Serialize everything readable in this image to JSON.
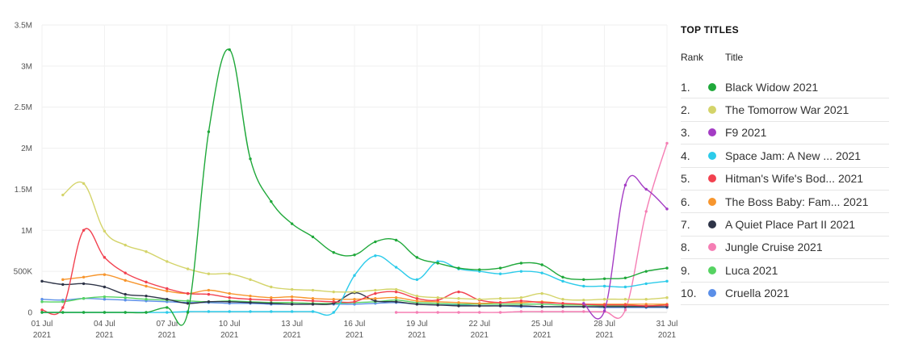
{
  "chart_data": {
    "type": "line",
    "y_ticks": [
      "0",
      "500K",
      "1M",
      "1.5M",
      "2M",
      "2.5M",
      "3M",
      "3.5M"
    ],
    "y_tick_values": [
      0,
      500000,
      1000000,
      1500000,
      2000000,
      2500000,
      3000000,
      3500000
    ],
    "ylim": [
      0,
      3500000
    ],
    "x_ticks": [
      {
        "day": 1,
        "line1": "01 Jul",
        "line2": "2021"
      },
      {
        "day": 4,
        "line1": "04 Jul",
        "line2": "2021"
      },
      {
        "day": 7,
        "line1": "07 Jul",
        "line2": "2021"
      },
      {
        "day": 10,
        "line1": "10 Jul",
        "line2": "2021"
      },
      {
        "day": 13,
        "line1": "13 Jul",
        "line2": "2021"
      },
      {
        "day": 16,
        "line1": "16 Jul",
        "line2": "2021"
      },
      {
        "day": 19,
        "line1": "19 Jul",
        "line2": "2021"
      },
      {
        "day": 22,
        "line1": "22 Jul",
        "line2": "2021"
      },
      {
        "day": 25,
        "line1": "25 Jul",
        "line2": "2021"
      },
      {
        "day": 28,
        "line1": "28 Jul",
        "line2": "2021"
      },
      {
        "day": 31,
        "line1": "31 Jul",
        "line2": "2021"
      }
    ],
    "xlim": [
      1,
      31
    ],
    "grid": true,
    "series": [
      {
        "name": "Black Widow 2021",
        "color": "#1fa83a",
        "days": [
          1,
          2,
          3,
          4,
          5,
          6,
          7,
          8,
          9,
          10,
          11,
          12,
          13,
          14,
          15,
          16,
          17,
          18,
          19,
          20,
          21,
          22,
          23,
          24,
          25,
          26,
          27,
          28,
          29,
          30,
          31
        ],
        "values": [
          0,
          0,
          0,
          0,
          0,
          0,
          60000,
          0,
          2200000,
          3200000,
          1870000,
          1350000,
          1080000,
          920000,
          730000,
          700000,
          860000,
          880000,
          670000,
          600000,
          540000,
          520000,
          540000,
          600000,
          580000,
          430000,
          400000,
          410000,
          420000,
          500000,
          540000
        ]
      },
      {
        "name": "The Tomorrow War 2021",
        "color": "#d4d46a",
        "days": [
          2,
          3,
          4,
          5,
          6,
          7,
          8,
          9,
          10,
          11,
          12,
          13,
          14,
          15,
          16,
          17,
          18,
          19,
          20,
          21,
          22,
          23,
          24,
          25,
          26,
          27,
          28,
          29,
          30,
          31
        ],
        "values": [
          1430000,
          1570000,
          990000,
          820000,
          740000,
          620000,
          530000,
          470000,
          470000,
          400000,
          310000,
          280000,
          270000,
          250000,
          250000,
          270000,
          280000,
          200000,
          180000,
          170000,
          160000,
          170000,
          180000,
          230000,
          160000,
          150000,
          160000,
          160000,
          160000,
          180000
        ]
      },
      {
        "name": "F9 2021",
        "color": "#a43cc4",
        "days": [
          27,
          28,
          29,
          30,
          31
        ],
        "values": [
          110000,
          20000,
          1550000,
          1500000,
          1260000
        ]
      },
      {
        "name": "Space Jam: A New ... 2021",
        "color": "#2ccbea",
        "days": [
          1,
          2,
          3,
          4,
          5,
          6,
          7,
          8,
          9,
          10,
          11,
          12,
          13,
          14,
          15,
          16,
          17,
          18,
          19,
          20,
          21,
          22,
          23,
          24,
          25,
          26,
          27,
          28,
          29,
          30,
          31
        ],
        "values": [
          0,
          0,
          0,
          0,
          0,
          0,
          0,
          10000,
          10000,
          10000,
          10000,
          10000,
          10000,
          10000,
          0,
          450000,
          690000,
          550000,
          400000,
          620000,
          530000,
          500000,
          470000,
          500000,
          480000,
          380000,
          320000,
          320000,
          310000,
          350000,
          380000
        ]
      },
      {
        "name": "Hitman's Wife's Bod... 2021",
        "color": "#f2414f",
        "days": [
          1,
          2,
          3,
          4,
          5,
          6,
          7,
          8,
          9,
          10,
          11,
          12,
          13,
          14,
          15,
          16,
          17,
          18,
          19,
          20,
          21,
          22,
          23,
          24,
          25,
          26,
          27,
          28,
          29,
          30,
          31
        ],
        "values": [
          30000,
          60000,
          1000000,
          670000,
          480000,
          370000,
          290000,
          230000,
          220000,
          180000,
          160000,
          150000,
          150000,
          140000,
          130000,
          130000,
          230000,
          250000,
          170000,
          150000,
          250000,
          150000,
          120000,
          140000,
          120000,
          110000,
          100000,
          90000,
          90000,
          80000,
          90000
        ]
      },
      {
        "name": "The Boss Baby: Fam... 2021",
        "color": "#f7962e",
        "days": [
          2,
          3,
          4,
          5,
          6,
          7,
          8,
          9,
          10,
          11,
          12,
          13,
          14,
          15,
          16,
          17,
          18,
          19,
          20,
          21,
          22,
          23,
          24,
          25,
          26,
          27,
          28,
          29,
          30,
          31
        ],
        "values": [
          400000,
          430000,
          460000,
          390000,
          320000,
          260000,
          230000,
          270000,
          230000,
          200000,
          180000,
          190000,
          170000,
          160000,
          160000,
          170000,
          180000,
          140000,
          130000,
          120000,
          110000,
          120000,
          120000,
          130000,
          110000,
          100000,
          100000,
          100000,
          100000,
          100000
        ]
      },
      {
        "name": "A Quiet Place Part II 2021",
        "color": "#2e3447",
        "days": [
          1,
          2,
          3,
          4,
          5,
          6,
          7,
          8,
          9,
          10,
          11,
          12,
          13,
          14,
          15,
          16,
          17,
          18,
          19,
          20,
          21,
          22,
          23,
          24,
          25,
          26,
          27,
          28,
          29,
          30,
          31
        ],
        "values": [
          380000,
          340000,
          350000,
          310000,
          220000,
          200000,
          160000,
          110000,
          130000,
          130000,
          120000,
          110000,
          100000,
          100000,
          110000,
          240000,
          140000,
          130000,
          100000,
          90000,
          80000,
          80000,
          80000,
          80000,
          70000,
          70000,
          70000,
          70000,
          70000,
          70000,
          70000
        ]
      },
      {
        "name": "Jungle Cruise 2021",
        "color": "#f57eb4",
        "days": [
          18,
          19,
          20,
          21,
          22,
          23,
          24,
          25,
          26,
          27,
          28,
          29,
          30,
          31
        ],
        "values": [
          0,
          0,
          0,
          0,
          0,
          0,
          10000,
          10000,
          10000,
          10000,
          10000,
          30000,
          1230000,
          2060000
        ]
      },
      {
        "name": "Luca 2021",
        "color": "#56d362",
        "days": [
          1,
          2,
          3,
          4,
          5,
          6,
          7,
          8,
          9,
          10,
          11,
          12,
          13,
          14,
          15,
          16,
          17,
          18,
          19,
          20,
          21,
          22,
          23,
          24,
          25,
          26,
          27,
          28,
          29,
          30,
          31
        ],
        "values": [
          130000,
          130000,
          170000,
          190000,
          180000,
          160000,
          150000,
          140000,
          130000,
          140000,
          130000,
          120000,
          120000,
          110000,
          110000,
          120000,
          130000,
          150000,
          120000,
          110000,
          100000,
          100000,
          100000,
          100000,
          100000,
          90000,
          90000,
          80000,
          80000,
          80000,
          90000
        ]
      },
      {
        "name": "Cruella 2021",
        "color": "#5b8fe8",
        "days": [
          1,
          2,
          3,
          4,
          5,
          6,
          7,
          8,
          9,
          10,
          11,
          12,
          13,
          14,
          15,
          16,
          17,
          18,
          19,
          20,
          21,
          22,
          23,
          24,
          25,
          26,
          27,
          28,
          29,
          30,
          31
        ],
        "values": [
          160000,
          150000,
          170000,
          160000,
          150000,
          140000,
          130000,
          120000,
          120000,
          110000,
          110000,
          100000,
          100000,
          100000,
          100000,
          100000,
          110000,
          120000,
          100000,
          90000,
          90000,
          80000,
          80000,
          70000,
          70000,
          70000,
          70000,
          60000,
          60000,
          60000,
          60000
        ]
      }
    ]
  },
  "legend": {
    "title": "TOP TITLES",
    "rank_header": "Rank",
    "title_header": "Title",
    "items": [
      {
        "rank": "1.",
        "label": "Black Widow 2021",
        "color": "#1fa83a"
      },
      {
        "rank": "2.",
        "label": "The Tomorrow War 2021",
        "color": "#d4d46a"
      },
      {
        "rank": "3.",
        "label": "F9 2021",
        "color": "#a43cc4"
      },
      {
        "rank": "4.",
        "label": "Space Jam: A New ... 2021",
        "color": "#2ccbea"
      },
      {
        "rank": "5.",
        "label": "Hitman's Wife's Bod... 2021",
        "color": "#f2414f"
      },
      {
        "rank": "6.",
        "label": "The Boss Baby: Fam... 2021",
        "color": "#f7962e"
      },
      {
        "rank": "7.",
        "label": "A Quiet Place Part II 2021",
        "color": "#2e3447"
      },
      {
        "rank": "8.",
        "label": "Jungle Cruise 2021",
        "color": "#f57eb4"
      },
      {
        "rank": "9.",
        "label": "Luca 2021",
        "color": "#56d362"
      },
      {
        "rank": "10.",
        "label": "Cruella 2021",
        "color": "#5b8fe8"
      }
    ]
  }
}
